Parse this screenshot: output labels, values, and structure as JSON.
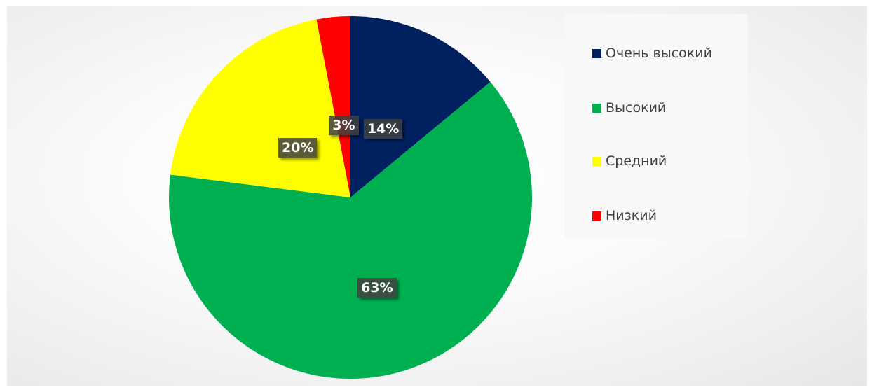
{
  "chart_data": {
    "type": "pie",
    "title": "",
    "categories": [
      "Очень высокий",
      "Высокий",
      "Средний",
      "Низкий"
    ],
    "values": [
      14,
      63,
      20,
      3
    ],
    "value_labels": [
      "14%",
      "63%",
      "20%",
      "3%"
    ],
    "colors": [
      "#002060",
      "#00B050",
      "#FFFF00",
      "#FF0000"
    ],
    "legend_position": "right"
  },
  "legend": {
    "items": [
      {
        "label": "Очень высокий",
        "color": "#002060"
      },
      {
        "label": "Высокий",
        "color": "#00B050"
      },
      {
        "label": "Средний",
        "color": "#FFFF00"
      },
      {
        "label": "Низкий",
        "color": "#FF0000"
      }
    ]
  }
}
